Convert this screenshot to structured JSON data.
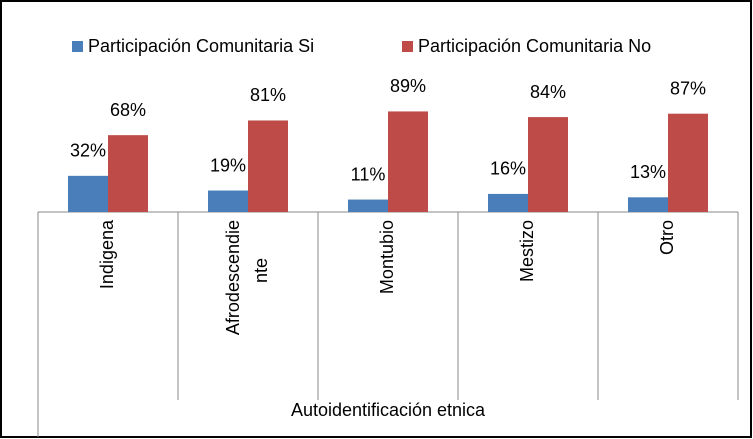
{
  "chart_data": {
    "type": "bar",
    "categories": [
      "Indigena",
      "Afrodescendiente",
      "Montubio",
      "Mestizo",
      "Otro"
    ],
    "series": [
      {
        "name": "Participación Comunitaria Si",
        "color": "#4a7ebb",
        "values": [
          32,
          19,
          11,
          16,
          13
        ],
        "value_labels": [
          "32%",
          "19%",
          "11%",
          "16%",
          "13%"
        ]
      },
      {
        "name": "Participación Comunitaria No",
        "color": "#be4b48",
        "values": [
          68,
          81,
          89,
          84,
          87
        ],
        "value_labels": [
          "68%",
          "81%",
          "89%",
          "84%",
          "87%"
        ]
      }
    ],
    "xlabel": "Autoidentificación etnica",
    "ylim": [
      0,
      100
    ],
    "legend": "top"
  }
}
